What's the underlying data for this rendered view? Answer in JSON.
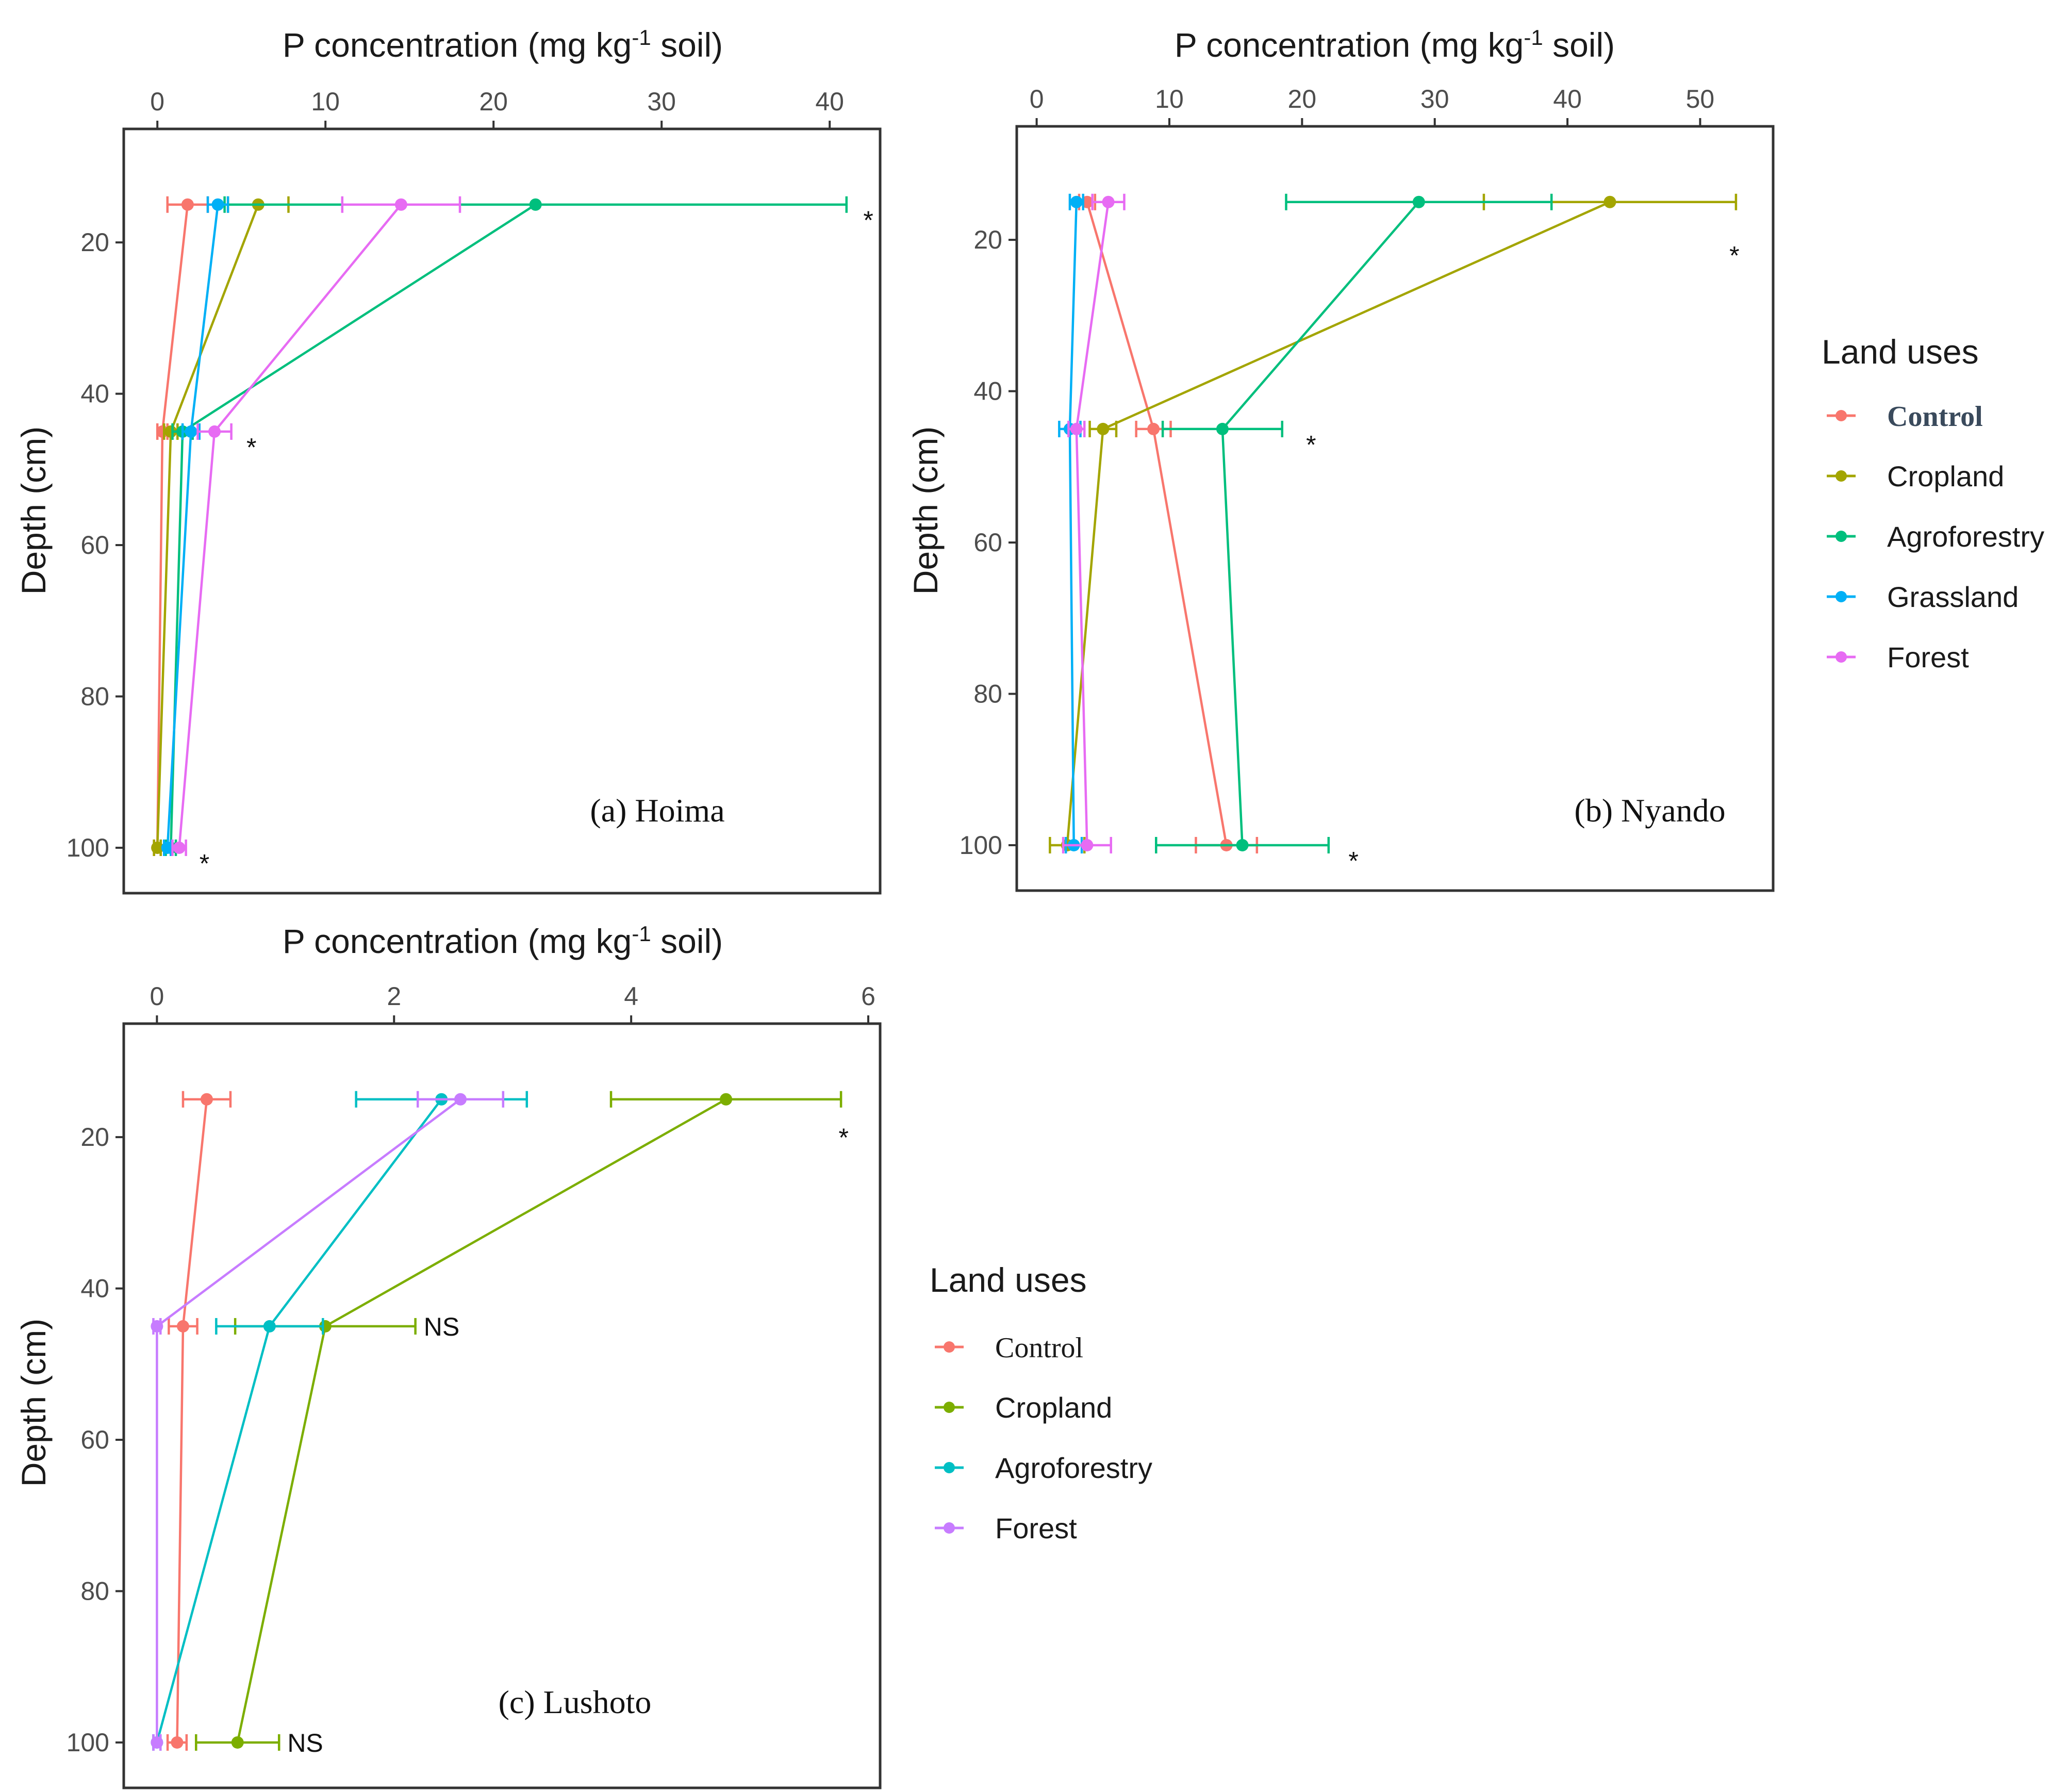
{
  "chart_data": [
    {
      "type": "line",
      "panel_label": "(a) Hoima",
      "xlabel": "P concentration (mg kg",
      "xlabel_sup": "-1",
      "xlabel_suffix": " soil)",
      "ylabel": "Depth (cm)",
      "xlim": [
        -2,
        43
      ],
      "ylim": [
        5,
        106
      ],
      "xticks": [
        0,
        10,
        20,
        30,
        40
      ],
      "yticks": [
        20,
        40,
        60,
        80,
        100
      ],
      "depths": [
        15,
        45,
        100
      ],
      "series": [
        {
          "name": "Control",
          "color": "#F8766D",
          "values": [
            1.8,
            0.3,
            0.0
          ],
          "err": [
            1.2,
            0.3,
            0.2
          ]
        },
        {
          "name": "Cropland",
          "color": "#A3A500",
          "values": [
            6.0,
            0.8,
            0.0
          ],
          "err": [
            1.8,
            0.4,
            0.2
          ]
        },
        {
          "name": "Agroforestry",
          "color": "#00BF7D",
          "values": [
            22.5,
            1.5,
            0.8
          ],
          "err": [
            18.5,
            0.6,
            0.3
          ]
        },
        {
          "name": "Grassland",
          "color": "#00B0F6",
          "values": [
            3.6,
            2.0,
            0.6
          ],
          "err": [
            0.6,
            0.5,
            0.2
          ]
        },
        {
          "name": "Forest",
          "color": "#E76BF3",
          "values": [
            14.5,
            3.4,
            1.3
          ],
          "err": [
            3.5,
            1.0,
            0.4
          ]
        }
      ],
      "annotations": [
        {
          "text": "*",
          "x": 42.0,
          "y": 17
        },
        {
          "text": "*",
          "x": 5.3,
          "y": 47
        },
        {
          "text": "*",
          "x": 2.5,
          "y": 102
        }
      ]
    },
    {
      "type": "line",
      "panel_label": "(b) Nyando",
      "xlabel": "P concentration (mg kg",
      "xlabel_sup": "-1",
      "xlabel_suffix": " soil)",
      "ylabel": "Depth (cm)",
      "xlim": [
        -1.5,
        55.5
      ],
      "ylim": [
        5,
        106
      ],
      "xticks": [
        0,
        10,
        20,
        30,
        40,
        50
      ],
      "yticks": [
        20,
        40,
        60,
        80,
        100
      ],
      "depths": [
        15,
        45,
        100
      ],
      "series": [
        {
          "name": "Control",
          "color": "#F8766D",
          "values": [
            3.8,
            8.8,
            14.3
          ],
          "err": [
            0.6,
            1.3,
            2.3
          ]
        },
        {
          "name": "Cropland",
          "color": "#A3A500",
          "values": [
            43.2,
            5.0,
            2.3
          ],
          "err": [
            9.5,
            1.0,
            1.3
          ]
        },
        {
          "name": "Agroforestry",
          "color": "#00BF7D",
          "values": [
            28.8,
            14.0,
            15.5
          ],
          "err": [
            10.0,
            4.5,
            6.5
          ]
        },
        {
          "name": "Grassland",
          "color": "#00B0F6",
          "values": [
            3.0,
            2.5,
            2.8
          ],
          "err": [
            0.5,
            0.8,
            0.6
          ]
        },
        {
          "name": "Forest",
          "color": "#E76BF3",
          "values": [
            5.4,
            3.0,
            3.8
          ],
          "err": [
            1.2,
            0.6,
            1.8
          ]
        }
      ],
      "annotations": [
        {
          "text": "*",
          "x": 52.2,
          "y": 22
        },
        {
          "text": "*",
          "x": 20.3,
          "y": 47
        },
        {
          "text": "*",
          "x": 23.5,
          "y": 102
        }
      ]
    },
    {
      "type": "line",
      "panel_label": "(c) Lushoto",
      "xlabel": "P concentration (mg kg",
      "xlabel_sup": "-1",
      "xlabel_suffix": " soil)",
      "ylabel": "Depth (cm)",
      "xlim": [
        -0.28,
        6.1
      ],
      "ylim": [
        5,
        106
      ],
      "xticks": [
        0,
        2,
        4,
        6
      ],
      "yticks": [
        20,
        40,
        60,
        80,
        100
      ],
      "depths": [
        15,
        45,
        100
      ],
      "series": [
        {
          "name": "Control",
          "color": "#F8766D",
          "values": [
            0.42,
            0.22,
            0.17
          ],
          "err": [
            0.2,
            0.12,
            0.08
          ]
        },
        {
          "name": "Cropland",
          "color": "#7CAE00",
          "values": [
            4.8,
            1.42,
            0.68
          ],
          "err": [
            0.97,
            0.76,
            0.35
          ]
        },
        {
          "name": "Agroforestry",
          "color": "#00BFC4",
          "values": [
            2.4,
            0.95,
            0.0
          ],
          "err": [
            0.72,
            0.45,
            0.03
          ]
        },
        {
          "name": "Forest",
          "color": "#C77CFF",
          "values": [
            2.56,
            0.0,
            0.0
          ],
          "err": [
            0.36,
            0.03,
            0.03
          ]
        }
      ],
      "annotations": [
        {
          "text": "*",
          "x": 5.75,
          "y": 20
        },
        {
          "text": "NS",
          "x": 2.25,
          "y": 45
        },
        {
          "text": "NS",
          "x": 1.1,
          "y": 100
        }
      ]
    }
  ],
  "legend_top": {
    "title": "Land uses",
    "items": [
      {
        "label": "Control",
        "color": "#F8766D",
        "style": "bold"
      },
      {
        "label": "Cropland",
        "color": "#A3A500",
        "style": "sans"
      },
      {
        "label": "Agroforestry",
        "color": "#00BF7D",
        "style": "sans"
      },
      {
        "label": "Grassland",
        "color": "#00B0F6",
        "style": "sans"
      },
      {
        "label": "Forest",
        "color": "#E76BF3",
        "style": "sans"
      }
    ]
  },
  "legend_bottom": {
    "title": "Land uses",
    "items": [
      {
        "label": "Control",
        "color": "#F8766D",
        "style": "serif"
      },
      {
        "label": "Cropland",
        "color": "#7CAE00",
        "style": "sans"
      },
      {
        "label": "Agroforestry",
        "color": "#00BFC4",
        "style": "sans"
      },
      {
        "label": "Forest",
        "color": "#C77CFF",
        "style": "sans"
      }
    ]
  }
}
